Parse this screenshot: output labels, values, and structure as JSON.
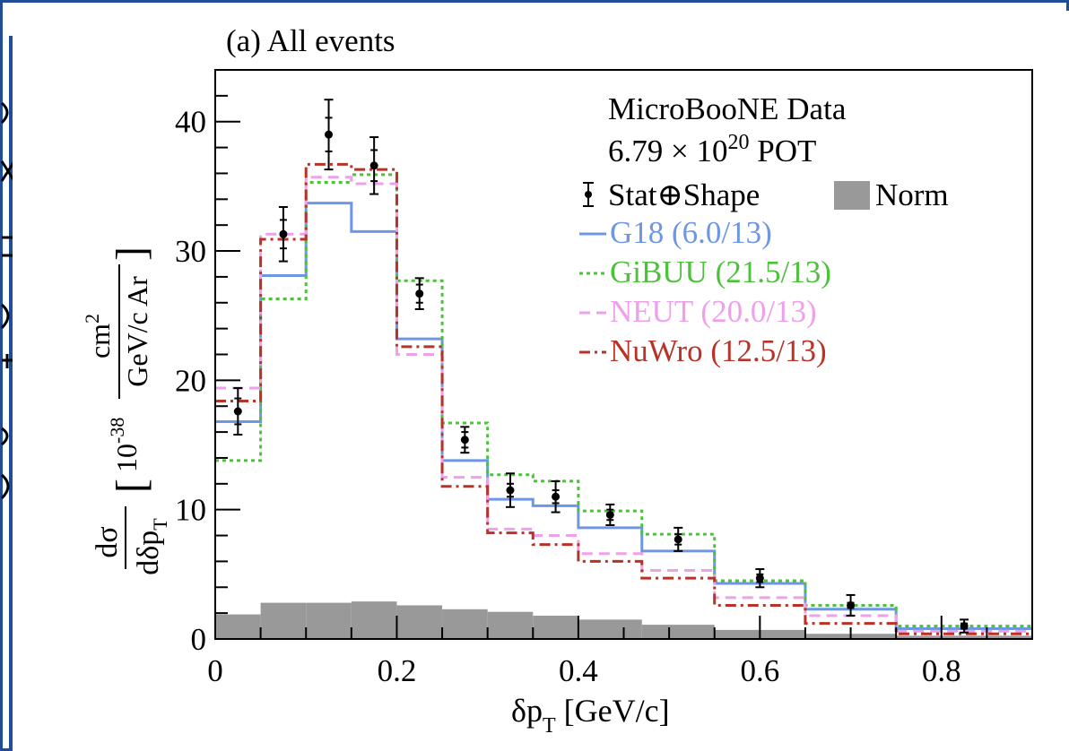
{
  "colors": {
    "frame_blue": "#1f4e96",
    "data": "#000000",
    "norm": "#999999",
    "g18": "#6e96e6",
    "gibuu": "#4cc23a",
    "neut": "#eea0ea",
    "nuwro": "#b83228"
  },
  "panel_label": "(a) All events",
  "legend": {
    "title_line1": "MicroBooNE Data",
    "pot_prefix": "6.79 × 10",
    "pot_exp": "20",
    "pot_suffix": " POT",
    "data_label": "Stat⊕Shape",
    "norm_label": "Norm"
  },
  "y_axis": {
    "frac_num": "dσ",
    "frac_den_main": "dδp",
    "frac_den_sub": "T",
    "factor": "10",
    "factor_exp": "-38",
    "unit_num": "cm",
    "unit_num_exp": "2",
    "unit_den": "GeV/c Ar"
  },
  "x_axis": {
    "label_main": "δp",
    "label_sub": "T",
    "label_rest": " [GeV/c]"
  },
  "chart_data": {
    "type": "histogram",
    "title": "(a) All events",
    "xlabel": "δpT [GeV/c]",
    "ylabel": "dσ/dδpT [10^-38 cm2 / GeV/c Ar]",
    "xlim": [
      0,
      0.9
    ],
    "ylim": [
      0,
      44
    ],
    "x_ticks": [
      0,
      0.2,
      0.4,
      0.6,
      0.8
    ],
    "x_tick_labels": [
      "0",
      "0.2",
      "0.4",
      "0.6",
      "0.8"
    ],
    "y_ticks": [
      0,
      10,
      20,
      30,
      40
    ],
    "y_tick_labels": [
      "0",
      "10",
      "20",
      "30",
      "40"
    ],
    "bin_edges": [
      0,
      0.05,
      0.1,
      0.15,
      0.2,
      0.25,
      0.3,
      0.35,
      0.4,
      0.47,
      0.55,
      0.65,
      0.75,
      0.9
    ],
    "data": {
      "name": "MicroBooNE Data",
      "x": [
        0.025,
        0.075,
        0.125,
        0.175,
        0.225,
        0.275,
        0.325,
        0.375,
        0.435,
        0.51,
        0.6,
        0.7,
        0.825
      ],
      "y": [
        17.6,
        31.3,
        39.0,
        36.6,
        26.7,
        15.4,
        11.5,
        11.0,
        9.6,
        7.7,
        4.7,
        2.6,
        1.0
      ],
      "err_stat": [
        1.0,
        1.1,
        1.3,
        1.2,
        0.7,
        0.6,
        0.5,
        0.5,
        0.4,
        0.4,
        0.3,
        0.2,
        0.2
      ],
      "err_total": [
        1.8,
        2.1,
        2.7,
        2.2,
        1.2,
        1.0,
        1.3,
        1.2,
        0.8,
        0.9,
        0.7,
        0.8,
        0.5
      ]
    },
    "norm": [
      1.9,
      2.8,
      2.8,
      2.9,
      2.6,
      2.3,
      2.1,
      1.8,
      1.5,
      1.1,
      0.7,
      0.4,
      0.25
    ],
    "series": [
      {
        "name": "G18 (6.0/13)",
        "key": "g18",
        "style": "solid",
        "values": [
          16.8,
          28.1,
          33.7,
          31.5,
          23.2,
          13.8,
          10.8,
          10.3,
          8.6,
          6.8,
          4.3,
          2.3,
          0.8
        ]
      },
      {
        "name": "GiBUU (21.5/13)",
        "key": "gibuu",
        "style": "dotted",
        "values": [
          13.8,
          26.3,
          35.3,
          35.9,
          27.7,
          16.7,
          12.7,
          12.2,
          9.9,
          8.1,
          4.5,
          2.6,
          1.0
        ]
      },
      {
        "name": "NEUT (20.0/13)",
        "key": "neut",
        "style": "dashed",
        "values": [
          19.4,
          31.3,
          35.7,
          35.2,
          22.0,
          12.5,
          8.5,
          8.0,
          6.6,
          5.3,
          3.2,
          1.8,
          0.6
        ]
      },
      {
        "name": "NuWro (12.5/13)",
        "key": "nuwro",
        "style": "dashdot",
        "values": [
          18.4,
          30.9,
          36.7,
          36.3,
          22.6,
          11.8,
          8.2,
          7.3,
          6.0,
          4.7,
          2.6,
          1.2,
          0.4
        ]
      }
    ],
    "grid": false,
    "legend_position": "top-right"
  }
}
